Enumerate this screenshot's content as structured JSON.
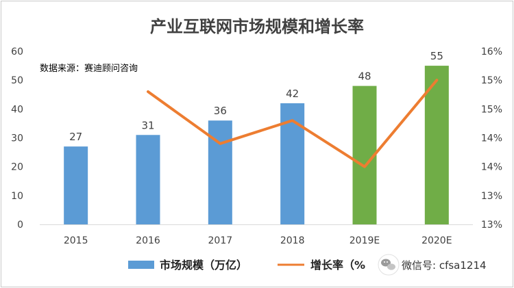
{
  "chart_data": {
    "type": "bar",
    "title": "产业互联网市场规模和增长率",
    "note": "数据来源：赛迪顾问咨询",
    "categories": [
      "2015",
      "2016",
      "2017",
      "2018",
      "2019E",
      "2020E"
    ],
    "series": [
      {
        "name": "市场规模（万亿）",
        "kind": "bar",
        "axis": "left",
        "values": [
          27,
          31,
          36,
          42,
          48,
          55
        ],
        "colors": [
          "#5b9bd5",
          "#5b9bd5",
          "#5b9bd5",
          "#5b9bd5",
          "#70ad47",
          "#70ad47"
        ]
      },
      {
        "name": "增长率（%）",
        "legend_display": "增长率（%",
        "kind": "line",
        "axis": "right",
        "color": "#ed7d31",
        "values": [
          null,
          15.3,
          14.4,
          14.8,
          14.0,
          15.5
        ]
      }
    ],
    "yleft": {
      "ylim": [
        0,
        60
      ],
      "ticks": [
        "0",
        "10",
        "20",
        "30",
        "40",
        "50",
        "60"
      ]
    },
    "yright": {
      "ylim": [
        13,
        16
      ],
      "ticks": [
        "13%",
        "13%",
        "14%",
        "14%",
        "15%",
        "15%",
        "16%"
      ]
    },
    "grid": false,
    "legend_position": "bottom"
  },
  "watermark": {
    "text": "微信号: cfsa1214",
    "icon": "wechat-icon"
  }
}
